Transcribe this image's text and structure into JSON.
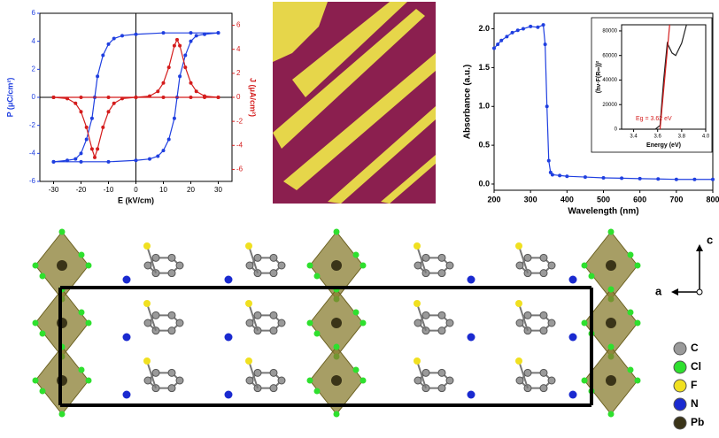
{
  "chart_data": [
    {
      "type": "line",
      "xlabel": "E (kV/cm)",
      "ylabel": "P (μC/cm²)",
      "y2label": "J (μA/cm²)",
      "xlim": [
        -35,
        35
      ],
      "xticks": [
        -30,
        -20,
        -10,
        0,
        10,
        20,
        30
      ],
      "ylim": [
        -6,
        6
      ],
      "yticks": [
        -6,
        -4,
        -2,
        0,
        2,
        4,
        6
      ],
      "y2lim": [
        -7,
        7
      ],
      "y2ticks": [
        -6,
        -4,
        -2,
        0,
        2,
        4,
        6
      ],
      "y2color": "#d41c1c",
      "ycolor": "#1f3fe0",
      "zero_lines": true,
      "markers": true,
      "series": [
        {
          "color": "#1f3fe0",
          "x": [
            -30,
            -20,
            -10,
            0,
            5,
            8,
            10,
            12,
            14,
            15,
            16,
            18,
            20,
            22,
            25,
            30,
            30,
            20,
            10,
            0,
            -5,
            -8,
            -10,
            -12,
            -14,
            -15,
            -16,
            -18,
            -20,
            -22,
            -25,
            -30
          ],
          "values": [
            -4.6,
            -4.6,
            -4.6,
            -4.5,
            -4.4,
            -4.2,
            -3.8,
            -3.0,
            -1.5,
            0,
            1.5,
            3.0,
            4.0,
            4.4,
            4.5,
            4.6,
            4.6,
            4.6,
            4.6,
            4.5,
            4.4,
            4.2,
            3.8,
            3.0,
            1.5,
            0,
            -1.5,
            -3.0,
            -4.0,
            -4.4,
            -4.5,
            -4.6
          ]
        },
        {
          "color": "#d41c1c",
          "axis": "y2",
          "x": [
            -30,
            -20,
            -10,
            0,
            5,
            8,
            10,
            12,
            14,
            15,
            16,
            18,
            20,
            22,
            25,
            30,
            30,
            25,
            20,
            10,
            0,
            -5,
            -8,
            -10,
            -12,
            -14,
            -15,
            -16,
            -18,
            -20,
            -22,
            -25,
            -30
          ],
          "values": [
            0,
            0,
            0,
            0,
            0.1,
            0.5,
            1.2,
            2.5,
            4.3,
            4.8,
            4.3,
            2.5,
            1.2,
            0.5,
            0.1,
            0,
            0,
            0,
            0,
            0,
            0,
            -0.1,
            -0.5,
            -1.2,
            -2.5,
            -4.3,
            -5,
            -4.3,
            -2.5,
            -1.2,
            -0.5,
            -0.1,
            0
          ]
        }
      ]
    },
    {
      "type": "line",
      "xlabel": "Wavelength (nm)",
      "ylabel": "Absorbance (a.u.)",
      "xlim": [
        200,
        800
      ],
      "xticks": [
        200,
        300,
        400,
        500,
        600,
        700,
        800
      ],
      "ylim": [
        -0.08,
        2.2
      ],
      "yticks": [
        {
          "value": 0,
          "label": "0.0"
        },
        0.5,
        {
          "value": 1,
          "label": "1.0"
        },
        1.5,
        {
          "value": 2,
          "label": "2.0"
        }
      ],
      "markers": true,
      "series": [
        {
          "color": "#1f3fe0",
          "x": [
            200,
            210,
            220,
            235,
            250,
            265,
            280,
            300,
            320,
            335,
            340,
            345,
            350,
            355,
            360,
            380,
            400,
            450,
            500,
            550,
            600,
            650,
            700,
            750,
            800
          ],
          "values": [
            1.75,
            1.8,
            1.85,
            1.9,
            1.95,
            1.98,
            2.0,
            2.03,
            2.02,
            2.05,
            1.8,
            1.0,
            0.3,
            0.15,
            0.12,
            0.11,
            0.1,
            0.09,
            0.08,
            0.075,
            0.07,
            0.065,
            0.06,
            0.06,
            0.06
          ]
        }
      ]
    },
    {
      "type": "line",
      "xlabel": "Energy (eV)",
      "ylabel": "(hν·F(R∞))²",
      "annotation": "Eg = 3.62 eV",
      "xlim": [
        3.3,
        4.0
      ],
      "xticks": [
        3.4,
        3.6,
        3.8,
        {
          "value": 4,
          "label": "4.0"
        }
      ],
      "ylim": [
        0,
        85000
      ],
      "yticks": [
        0,
        20000,
        40000,
        60000,
        80000
      ],
      "series": [
        {
          "color": "#222222",
          "x": [
            3.3,
            3.5,
            3.58,
            3.62,
            3.65,
            3.68,
            3.72,
            3.75,
            3.8,
            3.84
          ],
          "values": [
            0,
            0,
            0,
            3000,
            40000,
            70000,
            62000,
            60000,
            70000,
            85000
          ]
        },
        {
          "color": "#d41c1c",
          "x": [
            3.62,
            3.7
          ],
          "values": [
            0,
            85000
          ]
        }
      ]
    }
  ],
  "structure": {
    "axes": {
      "c": "c",
      "a": "a"
    },
    "legend": [
      {
        "label": "C",
        "color": "#9a9a9a"
      },
      {
        "label": "Cl",
        "color": "#2ee02e"
      },
      {
        "label": "F",
        "color": "#f0e020"
      },
      {
        "label": "N",
        "color": "#1a2ad0"
      },
      {
        "label": "Pb",
        "color": "#3a3418"
      }
    ]
  }
}
